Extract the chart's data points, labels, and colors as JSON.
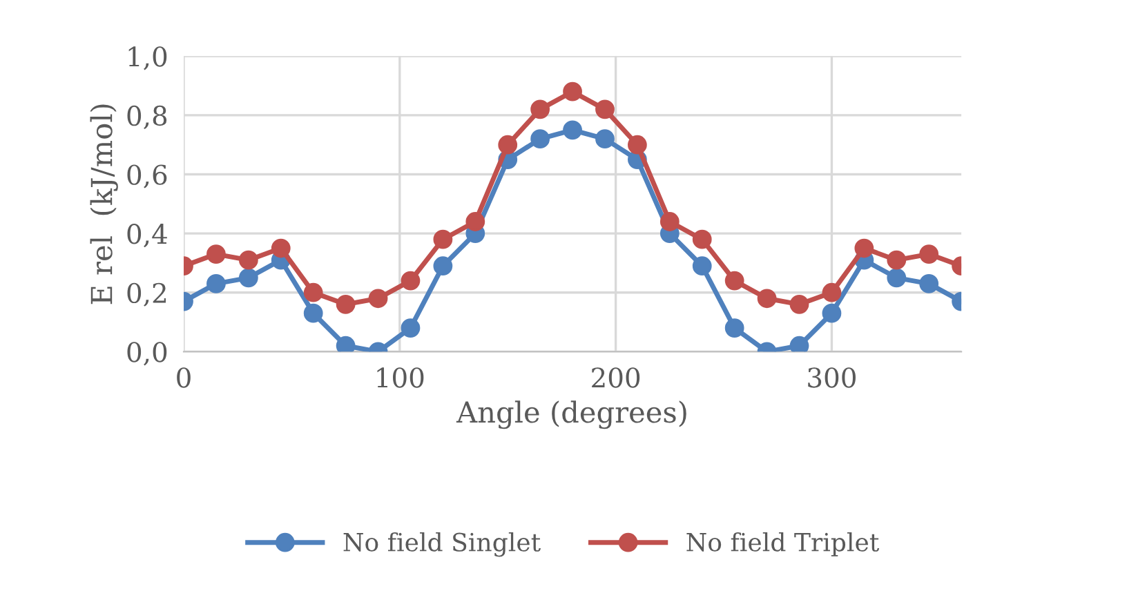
{
  "chart_data": {
    "type": "line",
    "xlabel": "Angle (degrees)",
    "ylabel": "E rel  (kJ/mol)",
    "x": [
      0,
      15,
      30,
      45,
      60,
      75,
      90,
      105,
      120,
      135,
      150,
      165,
      180,
      195,
      210,
      225,
      240,
      255,
      270,
      285,
      300,
      315,
      330,
      345,
      360
    ],
    "series": [
      {
        "name": "No field Singlet",
        "color": "#4f81bd",
        "values": [
          0.17,
          0.23,
          0.25,
          0.31,
          0.13,
          0.02,
          0.0,
          0.08,
          0.29,
          0.4,
          0.65,
          0.72,
          0.75,
          0.72,
          0.65,
          0.4,
          0.29,
          0.08,
          0.0,
          0.02,
          0.13,
          0.31,
          0.25,
          0.23,
          0.17
        ]
      },
      {
        "name": "No field Triplet",
        "color": "#c0504d",
        "values": [
          0.29,
          0.33,
          0.31,
          0.35,
          0.2,
          0.16,
          0.18,
          0.24,
          0.38,
          0.44,
          0.7,
          0.82,
          0.88,
          0.82,
          0.7,
          0.44,
          0.38,
          0.24,
          0.18,
          0.16,
          0.2,
          0.35,
          0.31,
          0.33,
          0.29
        ]
      }
    ],
    "xlim": [
      0,
      360
    ],
    "xticks": [
      0,
      100,
      200,
      300
    ],
    "ylim": [
      0,
      1.0
    ],
    "yticks": [
      {
        "value": 0,
        "label": "0,0"
      },
      {
        "value": 0.2,
        "label": "0,2"
      },
      {
        "value": 0.4,
        "label": "0,4"
      },
      {
        "value": 0.6,
        "label": "0,6"
      },
      {
        "value": 0.8,
        "label": "0,8"
      },
      {
        "value": 1.0,
        "label": "1,0"
      }
    ],
    "grid": true,
    "legend": "bottom",
    "marker": "circle",
    "line_style": "solid"
  }
}
